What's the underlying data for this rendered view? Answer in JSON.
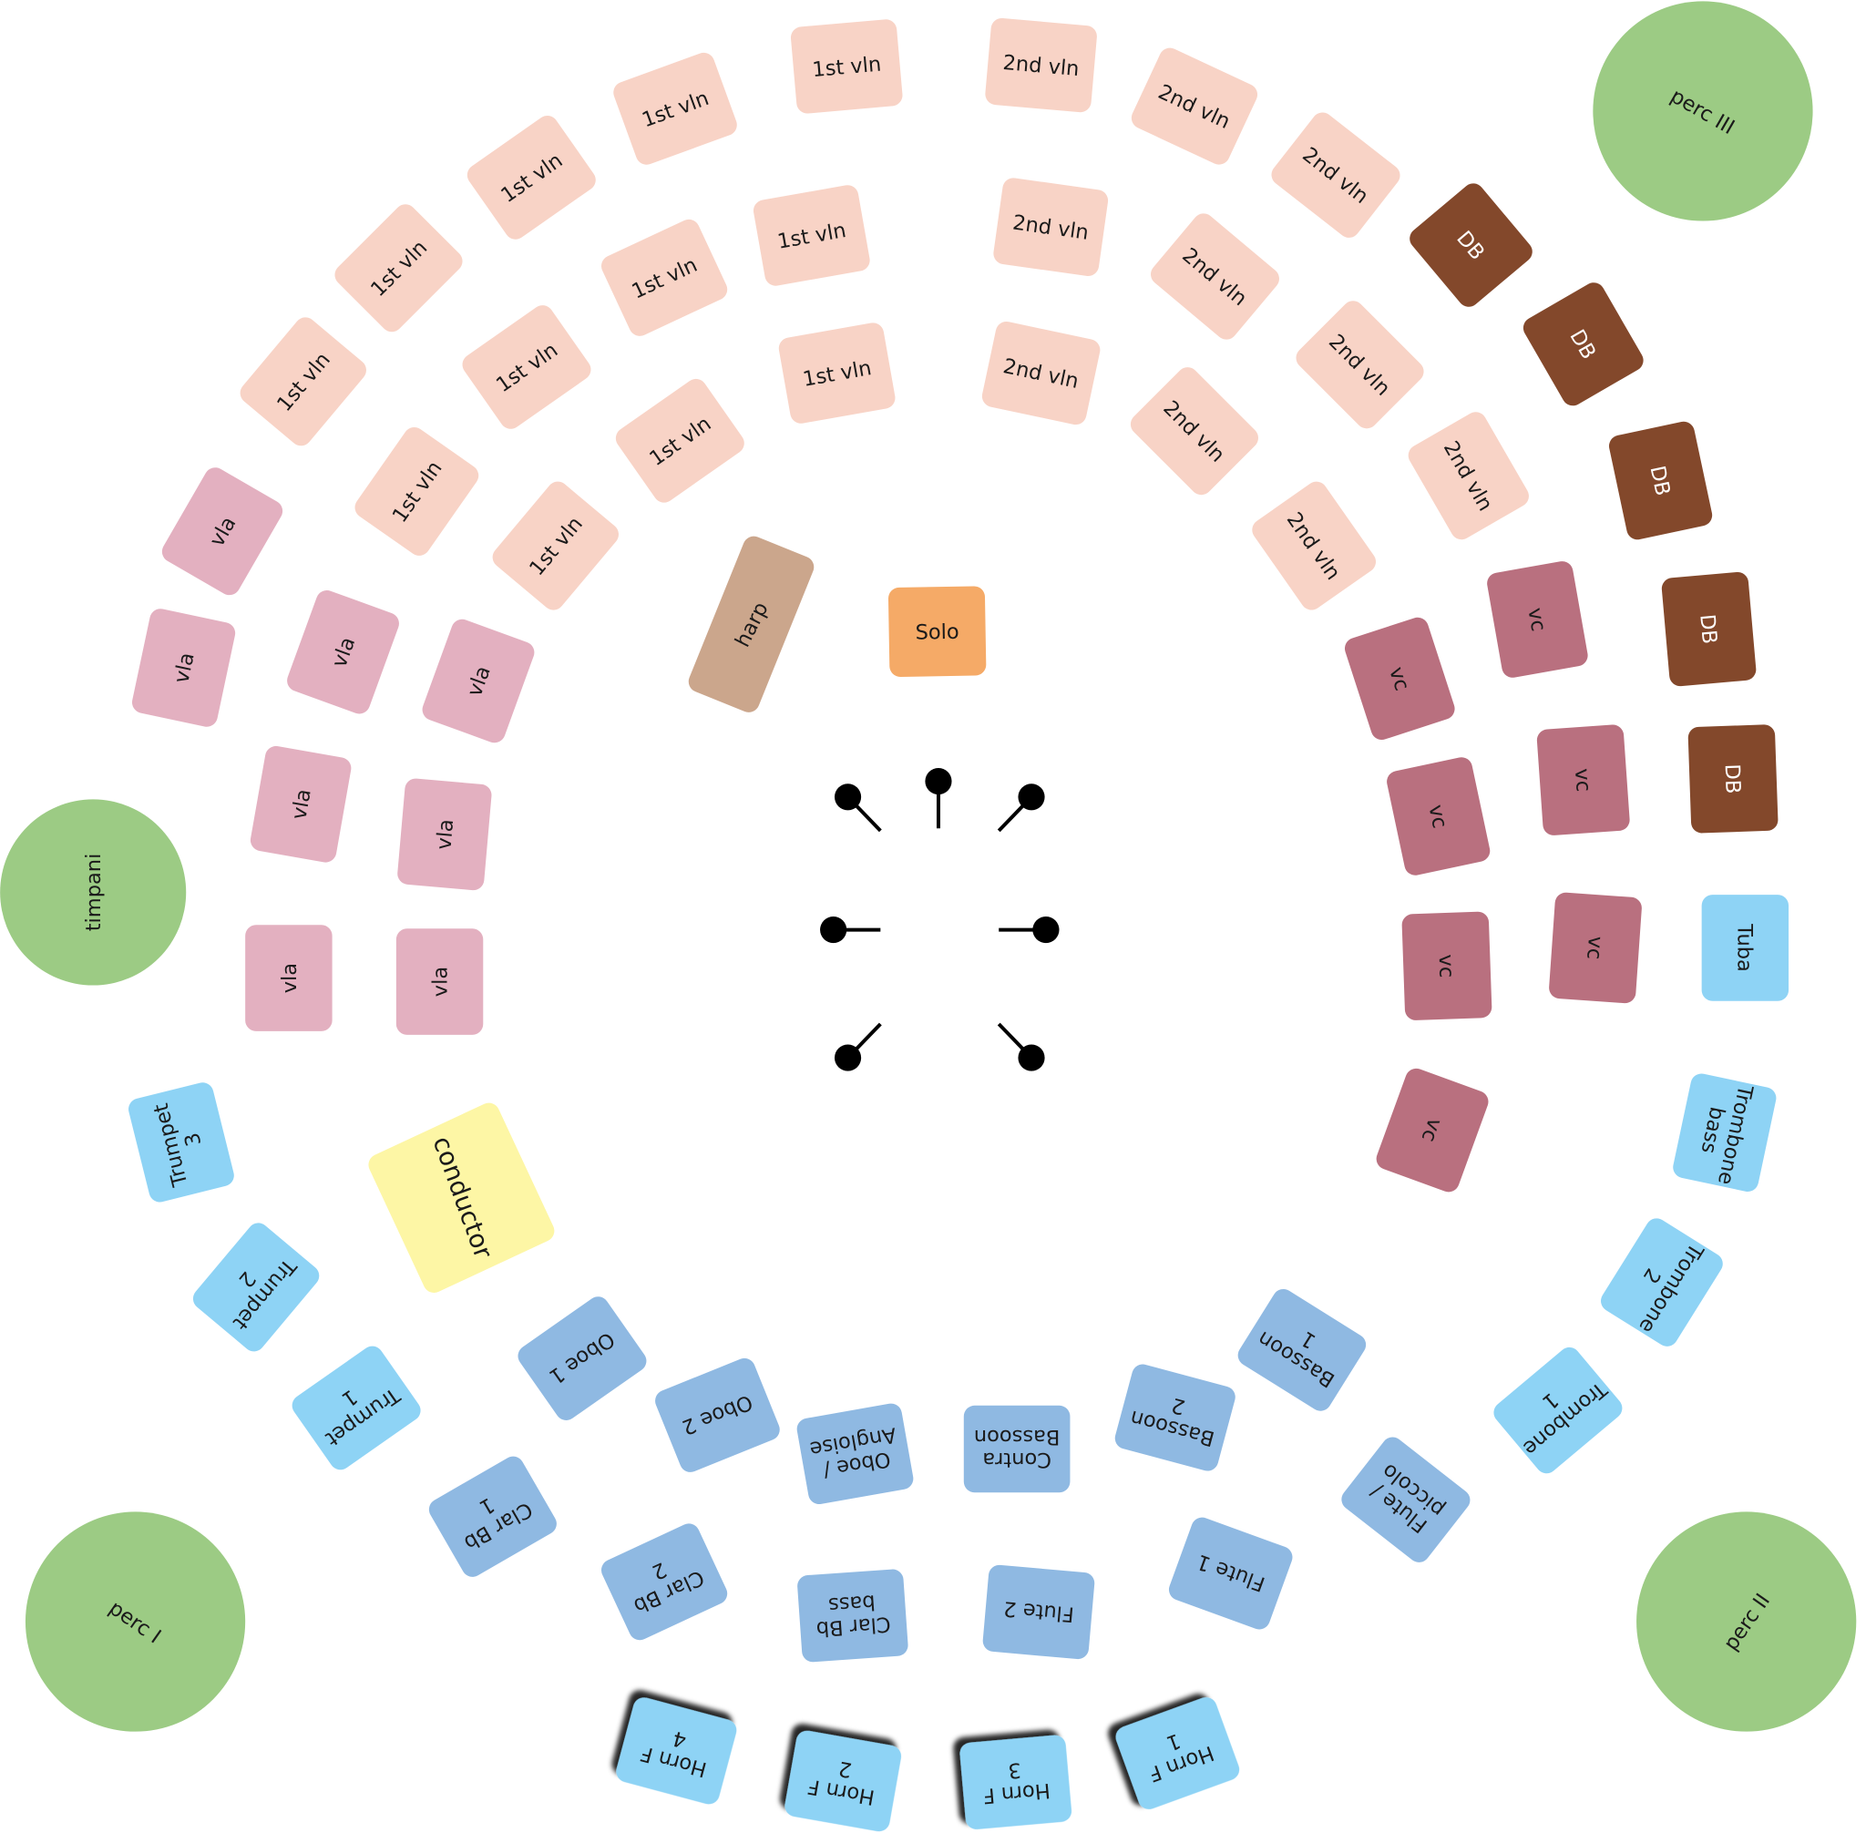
{
  "colors": {
    "violin": "#f8d3c6",
    "double_bass": "#83482b",
    "viola": "#e3b0c0",
    "cello": "#b9707f",
    "brass": "#8ed3f5",
    "woodwind": "#8fb9e2",
    "percussion": "#9ccb84",
    "harp": "#cba68c",
    "solo": "#f5aa67",
    "conductor": "#fdf6a5",
    "microphone": "#000000"
  },
  "seats": [
    {
      "lines": [
        "1st vln"
      ],
      "section": "violin"
    },
    {
      "lines": [
        "1st vln"
      ],
      "section": "violin"
    },
    {
      "lines": [
        "1st vln"
      ],
      "section": "violin"
    },
    {
      "lines": [
        "1st vln"
      ],
      "section": "violin"
    },
    {
      "lines": [
        "1st vln"
      ],
      "section": "violin"
    },
    {
      "lines": [
        "1st vln"
      ],
      "section": "violin"
    },
    {
      "lines": [
        "1st vln"
      ],
      "section": "violin"
    },
    {
      "lines": [
        "1st vln"
      ],
      "section": "violin"
    },
    {
      "lines": [
        "1st vln"
      ],
      "section": "violin"
    },
    {
      "lines": [
        "1st vln"
      ],
      "section": "violin"
    },
    {
      "lines": [
        "1st vln"
      ],
      "section": "violin"
    },
    {
      "lines": [
        "1st vln"
      ],
      "section": "violin"
    },
    {
      "lines": [
        "2nd vln"
      ],
      "section": "violin"
    },
    {
      "lines": [
        "2nd vln"
      ],
      "section": "violin"
    },
    {
      "lines": [
        "2nd vln"
      ],
      "section": "violin"
    },
    {
      "lines": [
        "2nd vln"
      ],
      "section": "violin"
    },
    {
      "lines": [
        "2nd vln"
      ],
      "section": "violin"
    },
    {
      "lines": [
        "2nd vln"
      ],
      "section": "violin"
    },
    {
      "lines": [
        "2nd vln"
      ],
      "section": "violin"
    },
    {
      "lines": [
        "2nd vln"
      ],
      "section": "violin"
    },
    {
      "lines": [
        "2nd vln"
      ],
      "section": "violin"
    },
    {
      "lines": [
        "2nd vln"
      ],
      "section": "violin"
    },
    {
      "lines": [
        "DB"
      ],
      "section": "double_bass"
    },
    {
      "lines": [
        "DB"
      ],
      "section": "double_bass"
    },
    {
      "lines": [
        "DB"
      ],
      "section": "double_bass"
    },
    {
      "lines": [
        "DB"
      ],
      "section": "double_bass"
    },
    {
      "lines": [
        "DB"
      ],
      "section": "double_bass"
    },
    {
      "lines": [
        "vla"
      ],
      "section": "viola"
    },
    {
      "lines": [
        "vla"
      ],
      "section": "viola"
    },
    {
      "lines": [
        "vla"
      ],
      "section": "viola"
    },
    {
      "lines": [
        "vla"
      ],
      "section": "viola"
    },
    {
      "lines": [
        "vla"
      ],
      "section": "viola"
    },
    {
      "lines": [
        "vla"
      ],
      "section": "viola"
    },
    {
      "lines": [
        "vla"
      ],
      "section": "viola"
    },
    {
      "lines": [
        "vla"
      ],
      "section": "viola"
    },
    {
      "lines": [
        "vc"
      ],
      "section": "cello"
    },
    {
      "lines": [
        "vc"
      ],
      "section": "cello"
    },
    {
      "lines": [
        "vc"
      ],
      "section": "cello"
    },
    {
      "lines": [
        "vc"
      ],
      "section": "cello"
    },
    {
      "lines": [
        "vc"
      ],
      "section": "cello"
    },
    {
      "lines": [
        "vc"
      ],
      "section": "cello"
    },
    {
      "lines": [
        "vc"
      ],
      "section": "cello"
    },
    {
      "lines": [
        "Tuba"
      ],
      "section": "brass"
    },
    {
      "lines": [
        "Trombone",
        "bass"
      ],
      "section": "brass"
    },
    {
      "lines": [
        "Trombone",
        "2"
      ],
      "section": "brass"
    },
    {
      "lines": [
        "Trombone",
        "1"
      ],
      "section": "brass"
    },
    {
      "lines": [
        "Trumpet",
        "3"
      ],
      "section": "brass"
    },
    {
      "lines": [
        "Trumpet",
        "2"
      ],
      "section": "brass"
    },
    {
      "lines": [
        "Trumpet",
        "1"
      ],
      "section": "brass"
    },
    {
      "lines": [
        "Oboe 1"
      ],
      "section": "woodwind"
    },
    {
      "lines": [
        "Oboe 2"
      ],
      "section": "woodwind"
    },
    {
      "lines": [
        "Oboe /",
        "Angloise"
      ],
      "section": "woodwind"
    },
    {
      "lines": [
        "Contra",
        "Bassoon"
      ],
      "section": "woodwind"
    },
    {
      "lines": [
        "Bassoon",
        "2"
      ],
      "section": "woodwind"
    },
    {
      "lines": [
        "Bassoon",
        "1"
      ],
      "section": "woodwind"
    },
    {
      "lines": [
        "Clar Bb",
        "1"
      ],
      "section": "woodwind"
    },
    {
      "lines": [
        "Clar Bb",
        "2"
      ],
      "section": "woodwind"
    },
    {
      "lines": [
        "Clar Bb",
        "bass"
      ],
      "section": "woodwind"
    },
    {
      "lines": [
        "Flute 2"
      ],
      "section": "woodwind"
    },
    {
      "lines": [
        "Flute 1"
      ],
      "section": "woodwind"
    },
    {
      "lines": [
        "Flute /",
        "piccolo"
      ],
      "section": "woodwind"
    },
    {
      "lines": [
        "Horn F",
        "4"
      ],
      "section": "brass",
      "shadow": true
    },
    {
      "lines": [
        "Horn F",
        "2"
      ],
      "section": "brass",
      "shadow": true
    },
    {
      "lines": [
        "Horn F",
        "3"
      ],
      "section": "brass",
      "shadow": true
    },
    {
      "lines": [
        "Horn F",
        "1"
      ],
      "section": "brass",
      "shadow": true
    },
    {
      "lines": [
        "harp"
      ],
      "section": "harp"
    },
    {
      "lines": [
        "Solo"
      ],
      "section": "solo"
    },
    {
      "lines": [
        "conductor"
      ],
      "section": "conductor"
    }
  ],
  "percussion": [
    {
      "label": "perc III"
    },
    {
      "label": "timpani"
    },
    {
      "label": "perc I"
    },
    {
      "label": "perc II"
    }
  ],
  "microphones": 7
}
